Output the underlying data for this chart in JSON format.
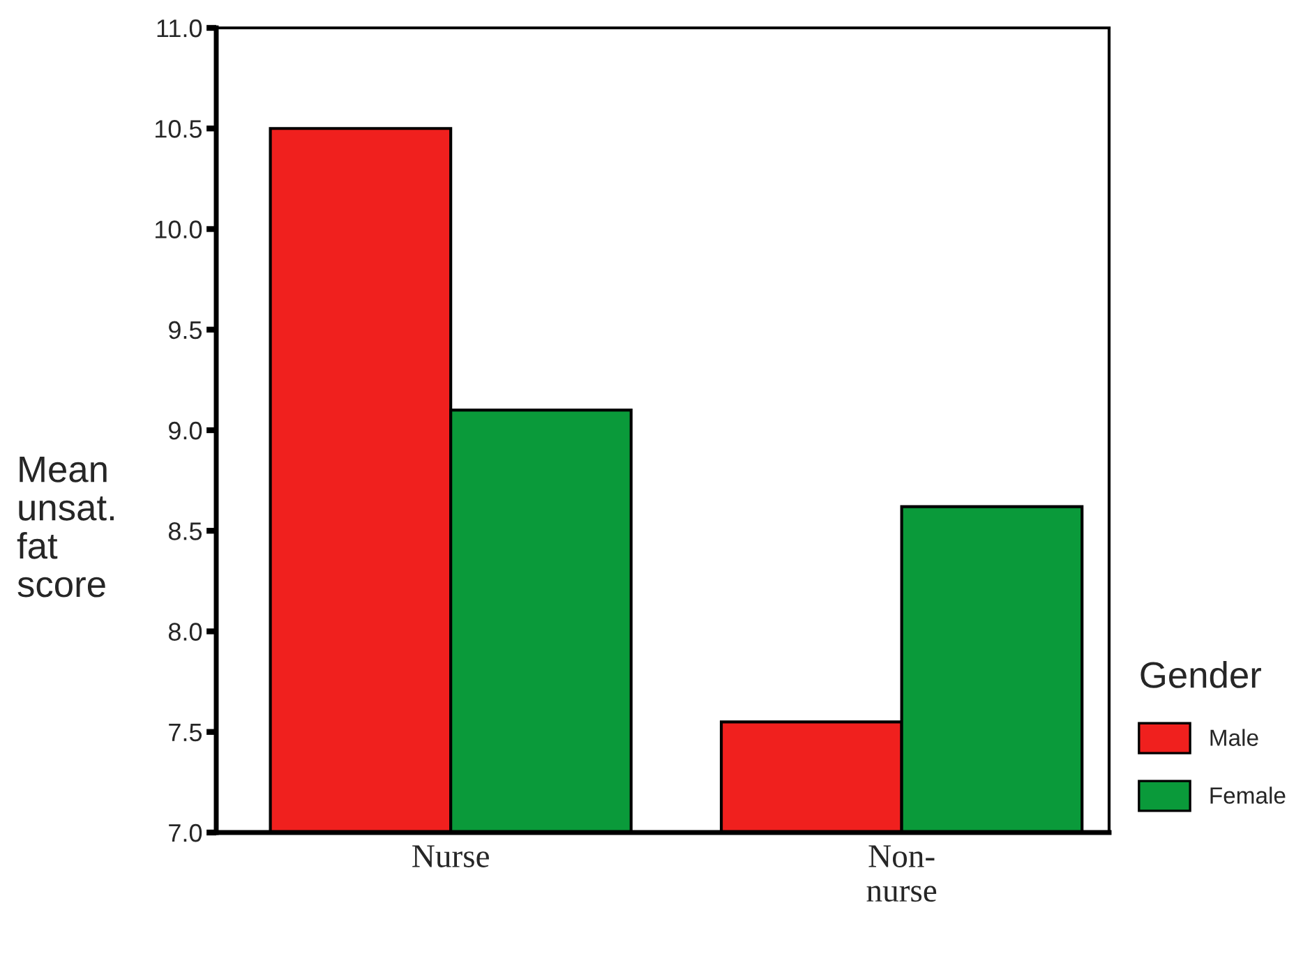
{
  "chart_data": {
    "type": "bar",
    "ylabel": "Mean\nunsat.\nfat\nscore",
    "legend_title": "Gender",
    "categories": [
      "Nurse",
      "Non-\nnurse"
    ],
    "series": [
      {
        "name": "Male",
        "color": "#f0201e",
        "values": [
          10.5,
          7.55
        ]
      },
      {
        "name": "Female",
        "color": "#0a9a3a",
        "values": [
          9.1,
          8.62
        ]
      }
    ],
    "ylim": [
      7.0,
      11.0
    ],
    "yticks": [
      {
        "value": 7.0,
        "label": "7.0"
      },
      {
        "value": 7.5,
        "label": "7.5"
      },
      {
        "value": 8.0,
        "label": "8.0"
      },
      {
        "value": 8.5,
        "label": "8.5"
      },
      {
        "value": 9.0,
        "label": "9.0"
      },
      {
        "value": 9.5,
        "label": "9.5"
      },
      {
        "value": 10.0,
        "label": "10.0"
      },
      {
        "value": 10.5,
        "label": "10.5"
      },
      {
        "value": 11.0,
        "label": "11.0"
      }
    ],
    "legend": "right",
    "grid": false
  }
}
